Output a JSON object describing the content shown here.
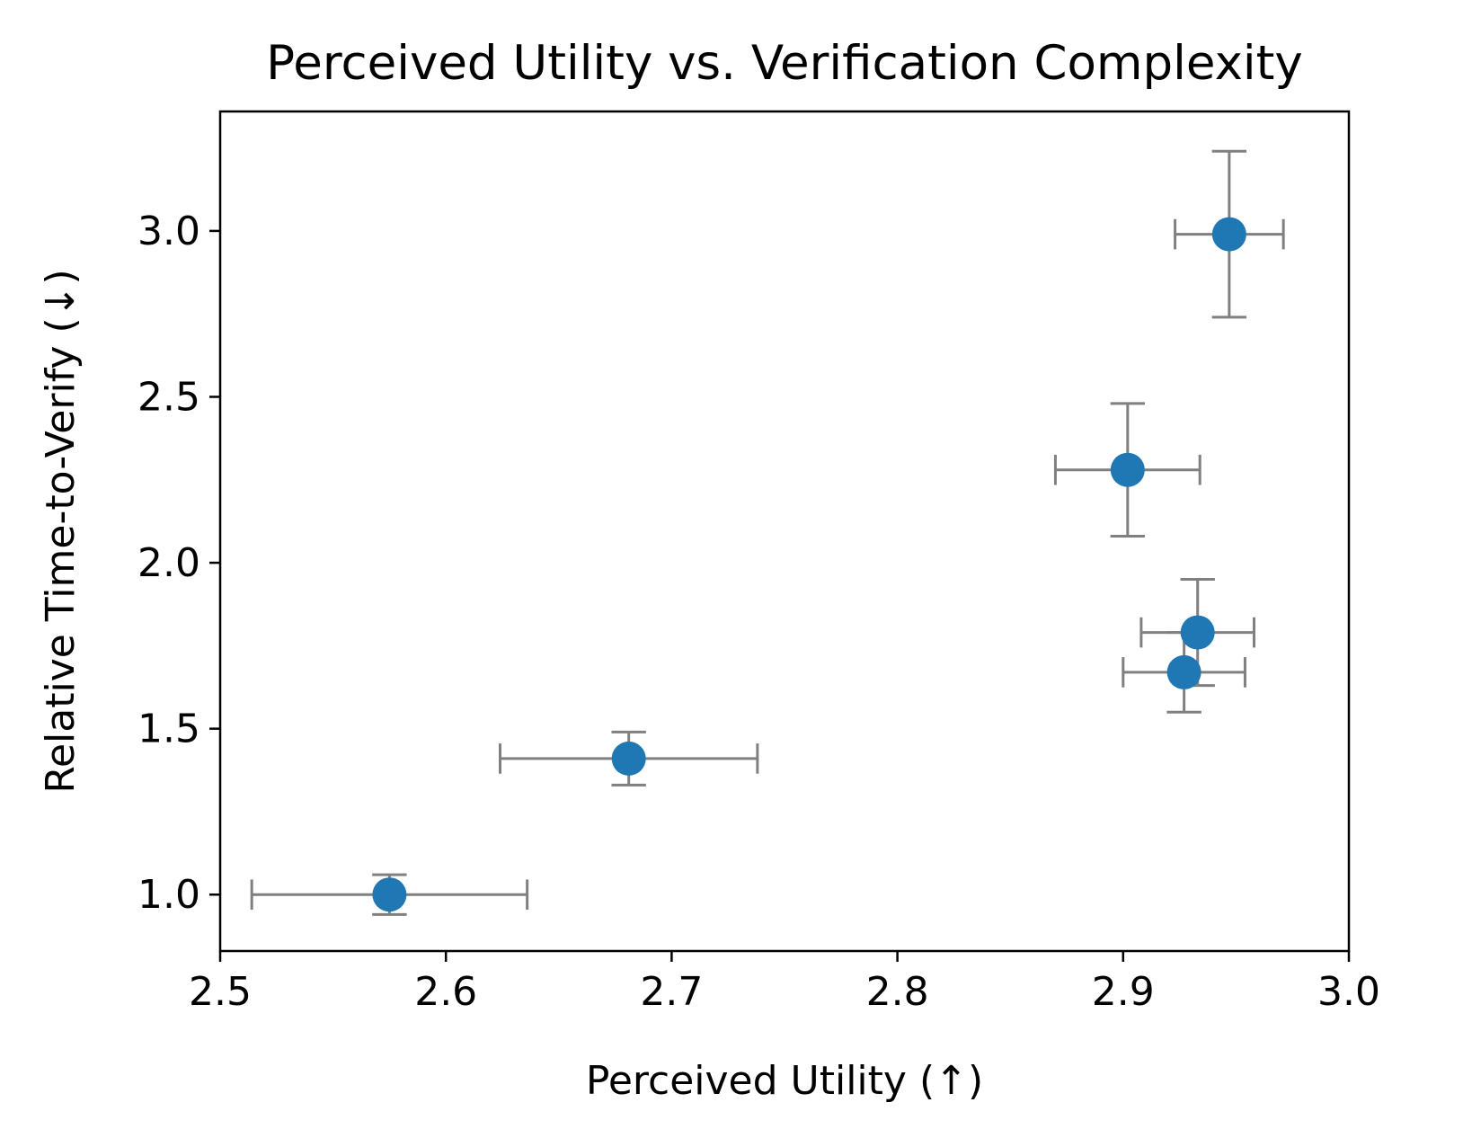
{
  "chart_data": {
    "type": "scatter",
    "title": "Perceived Utility vs. Verification Complexity",
    "xlabel": "Perceived Utility (↑)",
    "ylabel": "Relative Time-to-Verify (↓)",
    "xlim": [
      2.5,
      3.0
    ],
    "ylim": [
      0.83,
      3.36
    ],
    "xticks": [
      "2.5",
      "2.6",
      "2.7",
      "2.8",
      "2.9",
      "3.0"
    ],
    "yticks": [
      "1.0",
      "1.5",
      "2.0",
      "2.5",
      "3.0"
    ],
    "grid": false,
    "marker_color": "#1f77b4",
    "errorbar_color": "#808080",
    "points": [
      {
        "x": 2.575,
        "y": 1.0,
        "xerr": 0.061,
        "yerr": 0.06
      },
      {
        "x": 2.681,
        "y": 1.41,
        "xerr": 0.057,
        "yerr": 0.08
      },
      {
        "x": 2.902,
        "y": 2.28,
        "xerr": 0.032,
        "yerr": 0.2
      },
      {
        "x": 2.933,
        "y": 1.79,
        "xerr": 0.025,
        "yerr": 0.16
      },
      {
        "x": 2.927,
        "y": 1.67,
        "xerr": 0.027,
        "yerr": 0.12
      },
      {
        "x": 2.947,
        "y": 2.99,
        "xerr": 0.024,
        "yerr": 0.25
      }
    ]
  }
}
